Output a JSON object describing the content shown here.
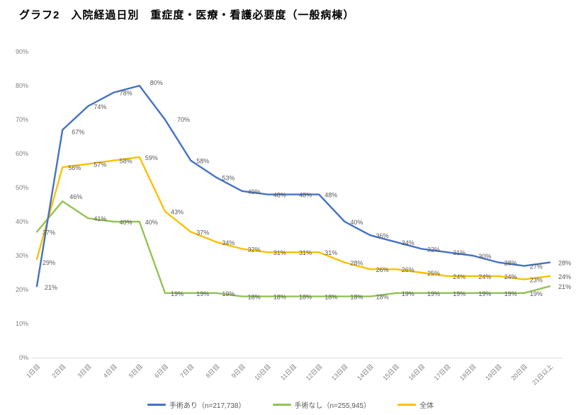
{
  "header": {
    "title": "グラフ2　入院経過日別　重症度・医療・看護必要度（一般病棟）"
  },
  "chart_data": {
    "type": "line",
    "title": "グラフ2　入院経過日別　重症度・医療・看護必要度（一般病棟）",
    "categories": [
      "1日目",
      "2日目",
      "3日目",
      "4日目",
      "5日目",
      "6日目",
      "7日目",
      "8日目",
      "9日目",
      "10日目",
      "11日目",
      "12日目",
      "13日目",
      "14日目",
      "15日目",
      "16日目",
      "17日目",
      "18日目",
      "19日目",
      "20日目",
      "21日以上"
    ],
    "series": [
      {
        "name": "手術あり（n=217,738）",
        "color": "#4472C4",
        "values": [
          21,
          67,
          74,
          78,
          80,
          70,
          58,
          53,
          49,
          48,
          48,
          48,
          40,
          36,
          34,
          32,
          31,
          30,
          28,
          27,
          28
        ]
      },
      {
        "name": "手術なし（n=255,945）",
        "color": "#92C353",
        "values": [
          37,
          46,
          41,
          40,
          40,
          19,
          19,
          19,
          18,
          18,
          18,
          18,
          18,
          18,
          19,
          19,
          19,
          19,
          19,
          19,
          21
        ]
      },
      {
        "name": "全体",
        "color": "#FFC000",
        "values": [
          29,
          56,
          57,
          58,
          59,
          43,
          37,
          34,
          32,
          31,
          31,
          31,
          28,
          26,
          26,
          25,
          24,
          24,
          24,
          23,
          24
        ]
      }
    ],
    "ylim": [
      0,
      90
    ],
    "ytick_step": 10,
    "ytick_labels": [
      "0%",
      "10%",
      "20%",
      "30%",
      "40%",
      "50%",
      "60%",
      "70%",
      "80%",
      "90%"
    ],
    "data_labels": "percent",
    "grid": false,
    "legend_position": "bottom",
    "colors": {
      "axis_line": "#D9D9D9",
      "tick_label": "#7F7F7F",
      "data_label": "#595959",
      "background": "#FFFFFF"
    }
  }
}
